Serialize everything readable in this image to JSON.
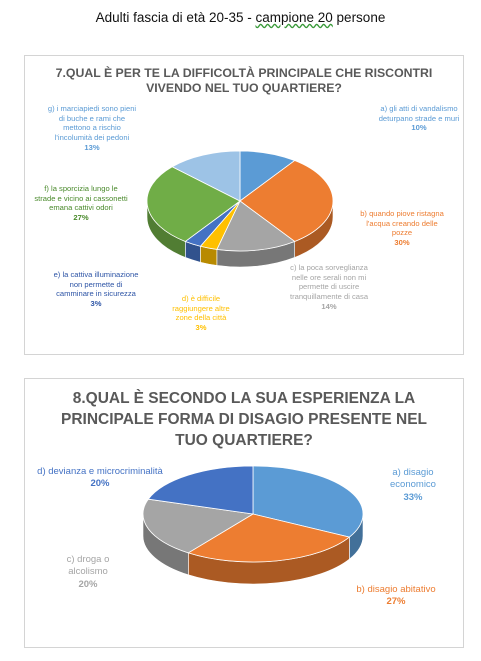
{
  "page": {
    "title_before": "Adulti fascia di età 20-35 - ",
    "title_underlined": "campione 20",
    "title_after": " persone"
  },
  "chart_data": [
    {
      "type": "pie",
      "title": "7.QUAL È PER TE LA DIFFICOLTÀ PRINCIPALE CHE RISCONTRI VIVENDO NEL TUO QUARTIERE?",
      "categories": [
        "a) gli atti di vandalismo deturpano strade e muri",
        "b) quando piove ristagna l'acqua creando delle pozze",
        "c) la poca sorveglianza nelle ore serali non mi permette di uscire tranquillamente di casa",
        "d) è difficile raggiungere altre zone della città",
        "e) la cattiva illuminazione non permette di camminare in sicurezza",
        "f) la sporcizia lungo le strade e vicino ai cassonetti emana cattivi odori",
        "g) i marciapiedi sono pieni di buche e rami che mettono a rischio l'incolumità dei pedoni"
      ],
      "values": [
        10,
        30,
        14,
        3,
        3,
        27,
        13
      ],
      "percent_labels": [
        "10%",
        "30%",
        "14%",
        "3%",
        "3%",
        "27%",
        "13%"
      ],
      "colors": [
        "#5b9bd5",
        "#ed7d31",
        "#a5a5a5",
        "#ffc000",
        "#4472c4",
        "#70ad47",
        "#9dc3e6"
      ],
      "label_colors": [
        "#5b9bd5",
        "#ed7d31",
        "#a5a5a5",
        "#ffc000",
        "#2e55a6",
        "#4a8a2c",
        "#5b9bd5"
      ]
    },
    {
      "type": "pie",
      "title": "8.QUAL È SECONDO LA SUA ESPERIENZA LA PRINCIPALE FORMA DI DISAGIO PRESENTE NEL TUO QUARTIERE?",
      "categories": [
        "a) disagio economico",
        "b) disagio abitativo",
        "c) droga o alcolismo",
        "d) devianza e microcriminalità"
      ],
      "values": [
        33,
        27,
        20,
        20
      ],
      "percent_labels": [
        "33%",
        "27%",
        "20%",
        "20%"
      ],
      "colors": [
        "#5b9bd5",
        "#ed7d31",
        "#a5a5a5",
        "#4472c4"
      ],
      "label_colors": [
        "#5b9bd5",
        "#ed7d31",
        "#a5a5a5",
        "#4472c4"
      ]
    }
  ]
}
